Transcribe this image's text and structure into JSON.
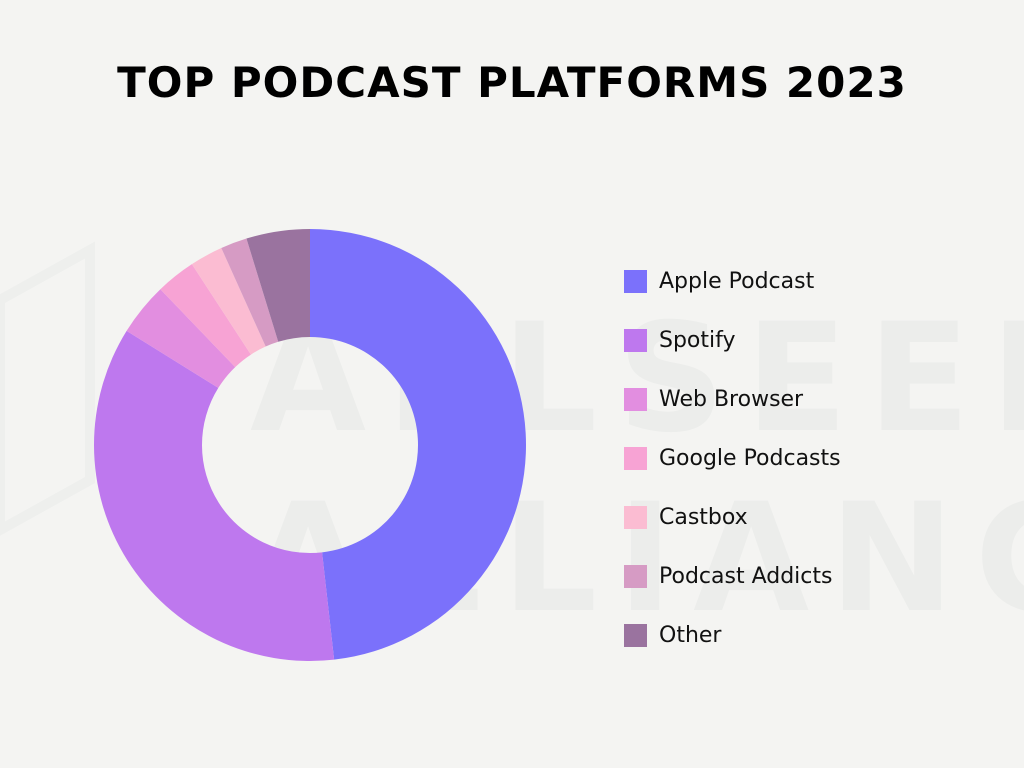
{
  "chart_data": {
    "type": "pie",
    "title": "TOP PODCAST PLATFORMS 2023",
    "categories": [
      "Apple Podcast",
      "Spotify",
      "Web Browser",
      "Google Podcasts",
      "Castbox",
      "Podcast Addicts",
      "Other"
    ],
    "values": [
      48.7,
      36.0,
      4.0,
      3.0,
      2.5,
      2.0,
      4.8
    ],
    "colors": [
      "#7b71fb",
      "#be78ee",
      "#e28ee0",
      "#f7a3d4",
      "#fbbcd2",
      "#d69bc4",
      "#9a739f"
    ],
    "legend_position": "right",
    "donut": true
  },
  "watermark": {
    "line1": "ALLSEEN",
    "line2": "ALLIANCE"
  }
}
